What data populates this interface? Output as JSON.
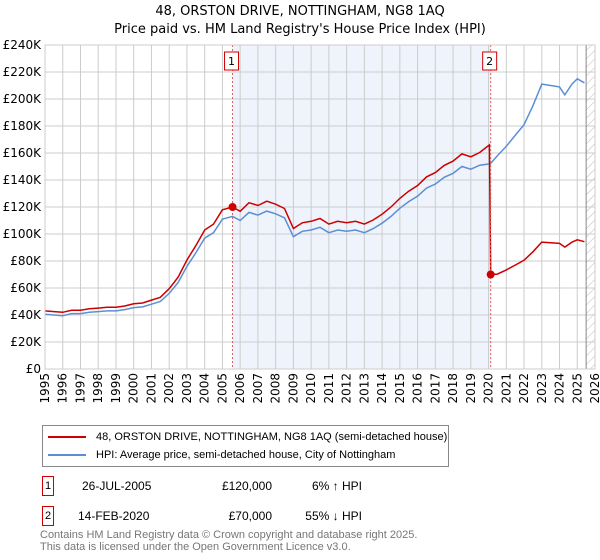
{
  "title_line1": "48, ORSTON DRIVE, NOTTINGHAM, NG8 1AQ",
  "title_line2": "Price paid vs. HM Land Registry's House Price Index (HPI)",
  "chart_data": {
    "type": "line",
    "xlim": [
      1995,
      2026
    ],
    "ylim": [
      0,
      240000
    ],
    "y_ticks": [
      0,
      20000,
      40000,
      60000,
      80000,
      100000,
      120000,
      140000,
      160000,
      180000,
      200000,
      220000,
      240000
    ],
    "y_tick_labels": [
      "£0",
      "£20K",
      "£40K",
      "£60K",
      "£80K",
      "£100K",
      "£120K",
      "£140K",
      "£160K",
      "£180K",
      "£200K",
      "£220K",
      "£240K"
    ],
    "x_ticks": [
      "1995",
      "1996",
      "1997",
      "1998",
      "1999",
      "2000",
      "2001",
      "2002",
      "2003",
      "2004",
      "2005",
      "2006",
      "2007",
      "2008",
      "2009",
      "2010",
      "2011",
      "2012",
      "2013",
      "2014",
      "2015",
      "2016",
      "2017",
      "2018",
      "2019",
      "2020",
      "2021",
      "2022",
      "2023",
      "2024",
      "2025",
      "2026"
    ],
    "grid": true,
    "shaded_range": [
      2005.57,
      2020.12
    ],
    "hatched_from": 2025.5,
    "series": [
      {
        "name": "48, ORSTON DRIVE, NOTTINGHAM, NG8 1AQ (semi-detached house)",
        "color": "#cc0000",
        "x": [
          1995,
          1995.5,
          1996,
          1996.5,
          1997,
          1997.5,
          1998,
          1998.5,
          1999,
          1999.5,
          2000,
          2000.5,
          2001,
          2001.5,
          2002,
          2002.5,
          2003,
          2003.5,
          2004,
          2004.5,
          2005,
          2005.57,
          2006,
          2006.5,
          2007,
          2007.5,
          2008,
          2008.5,
          2009,
          2009.5,
          2010,
          2010.5,
          2011,
          2011.5,
          2012,
          2012.5,
          2013,
          2013.5,
          2014,
          2014.5,
          2015,
          2015.5,
          2016,
          2016.5,
          2017,
          2017.5,
          2018,
          2018.5,
          2019,
          2019.5,
          2020.05,
          2020.12,
          2020.5,
          2021,
          2021.5,
          2022,
          2022.5,
          2023,
          2023.5,
          2024,
          2024.3,
          2024.7,
          2025,
          2025.4
        ],
        "values_k": [
          43,
          42.5,
          42,
          43.5,
          43.5,
          44.6,
          45.1,
          45.7,
          45.7,
          46.7,
          48.3,
          48.9,
          51,
          53.1,
          59.5,
          68,
          80.7,
          91.3,
          103,
          107.3,
          117.9,
          120,
          116.8,
          123.2,
          121.1,
          124.3,
          122.1,
          118.9,
          104.1,
          108.3,
          109.4,
          111.5,
          107.3,
          109.4,
          108.3,
          109.4,
          107.3,
          110.4,
          114.7,
          120,
          126.4,
          131.7,
          135.9,
          142.3,
          145.5,
          150.8,
          154,
          159.3,
          157.2,
          160.4,
          166,
          70,
          70.3,
          73.4,
          77,
          80.5,
          86.8,
          94,
          93.5,
          93,
          90.3,
          93.9,
          95.7,
          94.3
        ]
      },
      {
        "name": "HPI: Average price, semi-detached house, City of Nottingham",
        "color": "#5b8fd4",
        "x": [
          1995,
          1995.5,
          1996,
          1996.5,
          1997,
          1997.5,
          1998,
          1998.5,
          1999,
          1999.5,
          2000,
          2000.5,
          2001,
          2001.5,
          2002,
          2002.5,
          2003,
          2003.5,
          2004,
          2004.5,
          2005,
          2005.57,
          2006,
          2006.5,
          2007,
          2007.5,
          2008,
          2008.5,
          2009,
          2009.5,
          2010,
          2010.5,
          2011,
          2011.5,
          2012,
          2012.5,
          2013,
          2013.5,
          2014,
          2014.5,
          2015,
          2015.5,
          2016,
          2016.5,
          2017,
          2017.5,
          2018,
          2018.5,
          2019,
          2019.5,
          2020.1,
          2020.5,
          2021,
          2021.5,
          2022,
          2022.5,
          2023,
          2023.5,
          2024,
          2024.3,
          2024.7,
          2025,
          2025.4
        ],
        "values_k": [
          40.5,
          40,
          39.5,
          41,
          41,
          42,
          42.5,
          43,
          43,
          44,
          45.5,
          46,
          48,
          50,
          56,
          64,
          76,
          86,
          97,
          101,
          111,
          113,
          110,
          116,
          114,
          117,
          115,
          112,
          98,
          102,
          103,
          105,
          101,
          103,
          102,
          103,
          101,
          104,
          108,
          113,
          119,
          124,
          128,
          134,
          137,
          142,
          145,
          150,
          148,
          151,
          152,
          158,
          165,
          173,
          181,
          195,
          211,
          210,
          209,
          203,
          211,
          215,
          212
        ]
      }
    ],
    "annotations": [
      {
        "label": "1",
        "x": 2005.57,
        "value_k": 120
      },
      {
        "label": "2",
        "x": 2020.12,
        "value_k": 70
      }
    ]
  },
  "legend": {
    "property": "48, ORSTON DRIVE, NOTTINGHAM, NG8 1AQ (semi-detached house)",
    "hpi": "HPI: Average price, semi-detached house, City of Nottingham"
  },
  "sales": [
    {
      "num": "1",
      "date": "26-JUL-2005",
      "price": "£120,000",
      "hpi": "6% ↑ HPI"
    },
    {
      "num": "2",
      "date": "14-FEB-2020",
      "price": "£70,000",
      "hpi": "55% ↓ HPI"
    }
  ],
  "footer_line1": "Contains HM Land Registry data © Crown copyright and database right 2025.",
  "footer_line2": "This data is licensed under the Open Government Licence v3.0."
}
